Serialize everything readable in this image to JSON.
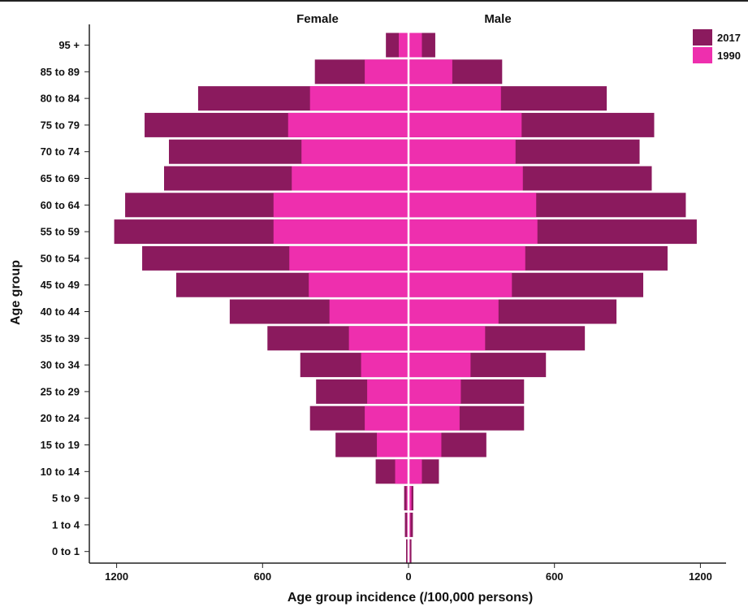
{
  "chart_data": {
    "type": "bar",
    "orientation": "horizontal-diverging",
    "panels": [
      "Female",
      "Male"
    ],
    "categories": [
      "95 +",
      "85 to 89",
      "80 to 84",
      "75 to 79",
      "70 to 74",
      "65 to 69",
      "60 to 64",
      "55 to 59",
      "50 to 54",
      "45 to 49",
      "40 to 44",
      "35 to 39",
      "30 to 34",
      "25 to 29",
      "20 to 24",
      "15 to 19",
      "10 to 14",
      "5 to 9",
      "1 to 4",
      "0 to 1"
    ],
    "series": [
      {
        "name": "2017",
        "color": "#8b1a5e",
        "female": [
          93,
          385,
          865,
          1085,
          985,
          1005,
          1165,
          1210,
          1095,
          955,
          735,
          580,
          445,
          380,
          405,
          300,
          135,
          18,
          15,
          10
        ],
        "male": [
          110,
          385,
          815,
          1010,
          950,
          1000,
          1140,
          1185,
          1065,
          965,
          855,
          725,
          565,
          475,
          475,
          320,
          125,
          20,
          18,
          12
        ]
      },
      {
        "name": "1990",
        "color": "#ee2fae",
        "female": [
          40,
          180,
          405,
          495,
          440,
          480,
          555,
          555,
          490,
          410,
          325,
          245,
          195,
          170,
          180,
          130,
          55,
          8,
          6,
          4
        ],
        "male": [
          55,
          180,
          380,
          465,
          440,
          470,
          525,
          530,
          480,
          425,
          370,
          315,
          255,
          215,
          210,
          135,
          55,
          12,
          8,
          6
        ]
      }
    ],
    "xlabel": "Age group incidence (/100,000 persons)",
    "ylabel": "Age group",
    "xticks": [
      1200,
      600,
      0,
      600,
      1200
    ],
    "xlim": [
      -1300,
      1300
    ],
    "legend_position": "top-right",
    "grid": false
  }
}
